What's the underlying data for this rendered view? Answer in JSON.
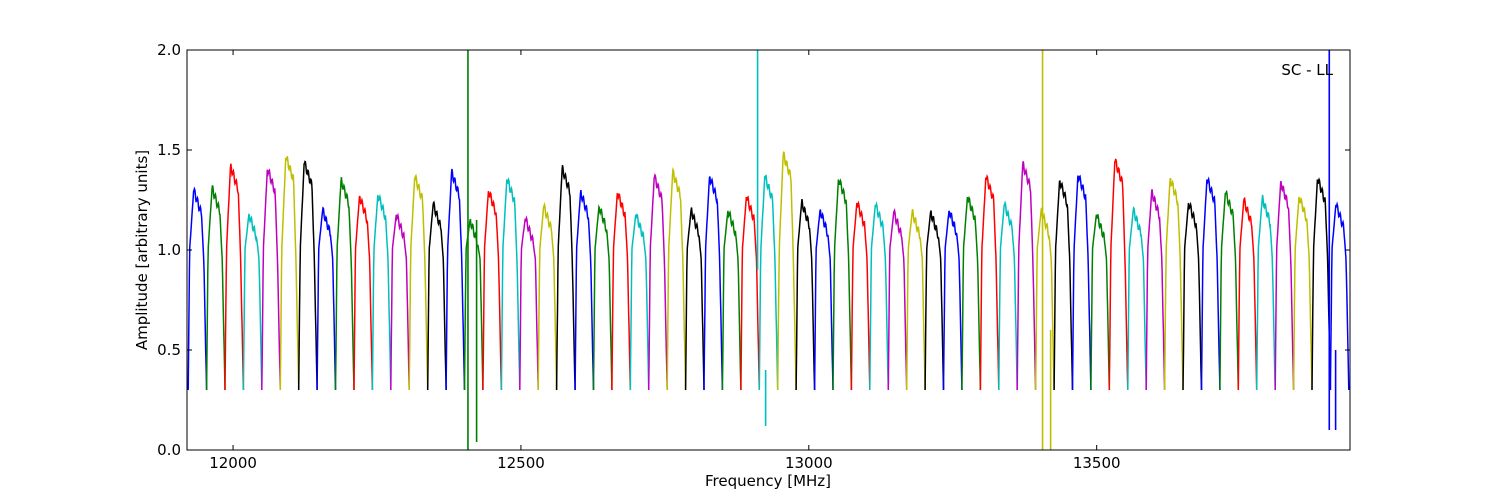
{
  "chart_data": {
    "type": "line",
    "title": "",
    "annotation": "SC - LL",
    "xlabel": "Frequency [MHz]",
    "ylabel": "Amplitude [arbitrary units]",
    "xlim": [
      11920,
      13940
    ],
    "ylim": [
      0.0,
      2.0
    ],
    "x_ticks": [
      12000,
      12500,
      13000,
      13500
    ],
    "y_ticks": [
      0.0,
      0.5,
      1.0,
      1.5,
      2.0
    ],
    "grid": false,
    "legend": "none",
    "colors": [
      "#0000ff",
      "#008000",
      "#ff0000",
      "#00bfbf",
      "#bf00bf",
      "#bfbf00",
      "#000000"
    ],
    "segment_width_mhz": 32,
    "series": [
      {
        "color": "#0000ff",
        "start": 11922,
        "peak": 1.3
      },
      {
        "color": "#008000",
        "start": 11954,
        "peak": 1.31
      },
      {
        "color": "#ff0000",
        "start": 11986,
        "peak": 1.42
      },
      {
        "color": "#00bfbf",
        "start": 12018,
        "peak": 1.18
      },
      {
        "color": "#bf00bf",
        "start": 12050,
        "peak": 1.41
      },
      {
        "color": "#bfbf00",
        "start": 12082,
        "peak": 1.47
      },
      {
        "color": "#000000",
        "start": 12114,
        "peak": 1.44
      },
      {
        "color": "#0000ff",
        "start": 12146,
        "peak": 1.2
      },
      {
        "color": "#008000",
        "start": 12178,
        "peak": 1.35
      },
      {
        "color": "#ff0000",
        "start": 12210,
        "peak": 1.27
      },
      {
        "color": "#00bfbf",
        "start": 12242,
        "peak": 1.28
      },
      {
        "color": "#bf00bf",
        "start": 12274,
        "peak": 1.18
      },
      {
        "color": "#bfbf00",
        "start": 12306,
        "peak": 1.37
      },
      {
        "color": "#000000",
        "start": 12338,
        "peak": 1.23
      },
      {
        "color": "#0000ff",
        "start": 12370,
        "peak": 1.39
      },
      {
        "color": "#008000",
        "start": 12402,
        "peak": 1.15
      },
      {
        "color": "#ff0000",
        "start": 12434,
        "peak": 1.3
      },
      {
        "color": "#00bfbf",
        "start": 12466,
        "peak": 1.36
      },
      {
        "color": "#bf00bf",
        "start": 12498,
        "peak": 1.16
      },
      {
        "color": "#bfbf00",
        "start": 12530,
        "peak": 1.22
      },
      {
        "color": "#000000",
        "start": 12562,
        "peak": 1.41
      },
      {
        "color": "#0000ff",
        "start": 12594,
        "peak": 1.29
      },
      {
        "color": "#008000",
        "start": 12626,
        "peak": 1.22
      },
      {
        "color": "#ff0000",
        "start": 12658,
        "peak": 1.29
      },
      {
        "color": "#00bfbf",
        "start": 12690,
        "peak": 1.18
      },
      {
        "color": "#bf00bf",
        "start": 12722,
        "peak": 1.37
      },
      {
        "color": "#bfbf00",
        "start": 12754,
        "peak": 1.39
      },
      {
        "color": "#000000",
        "start": 12786,
        "peak": 1.2
      },
      {
        "color": "#0000ff",
        "start": 12818,
        "peak": 1.37
      },
      {
        "color": "#008000",
        "start": 12850,
        "peak": 1.2
      },
      {
        "color": "#ff0000",
        "start": 12882,
        "peak": 1.27
      },
      {
        "color": "#00bfbf",
        "start": 12914,
        "peak": 1.37
      },
      {
        "color": "#bfbf00",
        "start": 12946,
        "peak": 1.48
      },
      {
        "color": "#000000",
        "start": 12978,
        "peak": 1.24
      },
      {
        "color": "#0000ff",
        "start": 13010,
        "peak": 1.2
      },
      {
        "color": "#008000",
        "start": 13042,
        "peak": 1.36
      },
      {
        "color": "#ff0000",
        "start": 13074,
        "peak": 1.24
      },
      {
        "color": "#00bfbf",
        "start": 13106,
        "peak": 1.23
      },
      {
        "color": "#bf00bf",
        "start": 13138,
        "peak": 1.19
      },
      {
        "color": "#bfbf00",
        "start": 13170,
        "peak": 1.19
      },
      {
        "color": "#000000",
        "start": 13202,
        "peak": 1.19
      },
      {
        "color": "#0000ff",
        "start": 13234,
        "peak": 1.2
      },
      {
        "color": "#008000",
        "start": 13266,
        "peak": 1.27
      },
      {
        "color": "#ff0000",
        "start": 13298,
        "peak": 1.37
      },
      {
        "color": "#00bfbf",
        "start": 13330,
        "peak": 1.23
      },
      {
        "color": "#bf00bf",
        "start": 13362,
        "peak": 1.43
      },
      {
        "color": "#bfbf00",
        "start": 13394,
        "peak": 1.2
      },
      {
        "color": "#000000",
        "start": 13426,
        "peak": 1.35
      },
      {
        "color": "#0000ff",
        "start": 13458,
        "peak": 1.38
      },
      {
        "color": "#008000",
        "start": 13490,
        "peak": 1.18
      },
      {
        "color": "#ff0000",
        "start": 13522,
        "peak": 1.45
      },
      {
        "color": "#00bfbf",
        "start": 13554,
        "peak": 1.2
      },
      {
        "color": "#bf00bf",
        "start": 13586,
        "peak": 1.29
      },
      {
        "color": "#bfbf00",
        "start": 13618,
        "peak": 1.36
      },
      {
        "color": "#000000",
        "start": 13650,
        "peak": 1.24
      },
      {
        "color": "#0000ff",
        "start": 13682,
        "peak": 1.36
      },
      {
        "color": "#008000",
        "start": 13714,
        "peak": 1.29
      },
      {
        "color": "#ff0000",
        "start": 13746,
        "peak": 1.25
      },
      {
        "color": "#00bfbf",
        "start": 13778,
        "peak": 1.26
      },
      {
        "color": "#bf00bf",
        "start": 13810,
        "peak": 1.34
      },
      {
        "color": "#bfbf00",
        "start": 13842,
        "peak": 1.27
      },
      {
        "color": "#000000",
        "start": 13874,
        "peak": 1.36
      },
      {
        "color": "#0000ff",
        "start": 13906,
        "peak": 1.23
      }
    ],
    "spikes": [
      {
        "x": 12408,
        "color": "#008000",
        "min": 0.0,
        "max": 2.0
      },
      {
        "x": 12423,
        "color": "#008000",
        "min": 0.04,
        "max": 1.15
      },
      {
        "x": 12911,
        "color": "#00bfbf",
        "min": 0.9,
        "max": 2.0
      },
      {
        "x": 12925,
        "color": "#00bfbf",
        "min": 0.12,
        "max": 0.4
      },
      {
        "x": 13406,
        "color": "#bfbf00",
        "min": 0.0,
        "max": 2.0
      },
      {
        "x": 13420,
        "color": "#bfbf00",
        "min": 0.0,
        "max": 0.6
      },
      {
        "x": 13904,
        "color": "#0000ff",
        "min": 0.1,
        "max": 2.0
      },
      {
        "x": 13915,
        "color": "#0000ff",
        "min": 0.1,
        "max": 0.5
      }
    ]
  }
}
